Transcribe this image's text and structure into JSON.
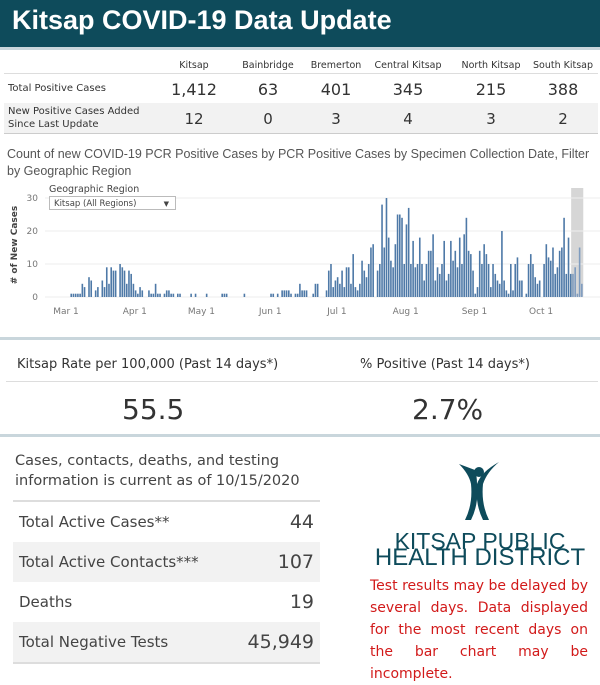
{
  "header": {
    "title": "Kitsap COVID-19 Data Update"
  },
  "summary": {
    "columns": [
      "Kitsap",
      "Bainbridge",
      "Bremerton",
      "Central Kitsap",
      "North Kitsap",
      "South Kitsap"
    ],
    "rows": [
      {
        "label": "Total Positive Cases",
        "values": [
          "1,412",
          "63",
          "401",
          "345",
          "215",
          "388"
        ]
      },
      {
        "label": "New Positive Cases Added Since Last Update",
        "values": [
          "12",
          "0",
          "3",
          "4",
          "3",
          "2"
        ]
      }
    ]
  },
  "filter": {
    "label": "Geographic Region",
    "value": "Kitsap (All Regions)"
  },
  "chart_data": {
    "type": "bar",
    "title": "Count of new COVID-19 PCR Positive Cases by PCR Positive Cases by Specimen Collection Date, Filter by Geographic Region",
    "xlabel": "",
    "ylabel": "# of New Cases",
    "ylim": [
      0,
      30
    ],
    "yticks": [
      "0",
      "10",
      "20",
      "30"
    ],
    "xticks": [
      "Mar 1",
      "Apr 1",
      "May 1",
      "Jun 1",
      "Jul 1",
      "Aug 1",
      "Sep 1",
      "Oct 1"
    ],
    "start_date": "Mar 1",
    "highlight": "last 5 days (possibly incomplete)",
    "values": [
      0,
      0,
      1,
      1,
      1,
      1,
      1,
      4,
      3,
      0,
      6,
      5,
      0,
      2,
      3,
      0,
      5,
      3,
      9,
      4,
      9,
      8,
      8,
      0,
      10,
      9,
      8,
      4,
      8,
      7,
      4,
      2,
      1,
      3,
      2,
      0,
      0,
      2,
      1,
      1,
      4,
      1,
      1,
      0,
      1,
      2,
      2,
      1,
      1,
      0,
      1,
      1,
      0,
      0,
      0,
      0,
      1,
      0,
      1,
      0,
      0,
      0,
      0,
      1,
      0,
      0,
      0,
      0,
      0,
      0,
      1,
      1,
      1,
      0,
      0,
      0,
      0,
      0,
      0,
      0,
      1,
      0,
      0,
      0,
      0,
      0,
      0,
      0,
      0,
      0,
      0,
      0,
      1,
      1,
      0,
      1,
      0,
      2,
      2,
      2,
      2,
      1,
      0,
      1,
      1,
      4,
      2,
      2,
      2,
      0,
      0,
      1,
      4,
      4,
      0,
      0,
      0,
      2,
      8,
      10,
      3,
      5,
      6,
      4,
      8,
      3,
      9,
      9,
      4,
      13,
      3,
      2,
      4,
      11,
      8,
      6,
      10,
      15,
      16,
      0,
      8,
      10,
      28,
      15,
      30,
      18,
      11,
      9,
      16,
      25,
      25,
      24,
      10,
      22,
      27,
      10,
      17,
      9,
      10,
      18,
      10,
      5,
      10,
      14,
      14,
      19,
      5,
      9,
      7,
      10,
      17,
      5,
      7,
      17,
      11,
      14,
      9,
      18,
      10,
      19,
      24,
      14,
      13,
      8,
      1,
      3,
      14,
      10,
      16,
      13,
      10,
      3,
      10,
      7,
      5,
      4,
      20,
      5,
      2,
      1,
      10,
      2,
      10,
      12,
      5,
      5,
      0,
      1,
      10,
      13,
      10,
      6,
      4,
      5,
      0,
      10,
      16,
      12,
      11,
      15,
      7,
      9,
      14,
      15,
      24,
      7,
      18,
      7,
      7,
      9,
      1,
      15,
      4
    ]
  },
  "kpis": [
    {
      "label": "Kitsap Rate per 100,000 (Past 14 days*)",
      "value": "55.5"
    },
    {
      "label": "% Positive (Past 14 days*)",
      "value": "2.7%"
    }
  ],
  "details": {
    "intro": "Cases, contacts, deaths, and testing information is current as of 10/15/2020",
    "rows": [
      {
        "label": "Total Active Cases**",
        "value": "44"
      },
      {
        "label": "Total Active Contacts***",
        "value": "107"
      },
      {
        "label": "Deaths",
        "value": "19"
      },
      {
        "label": "Total Negative Tests",
        "value": "45,949"
      }
    ]
  },
  "logo": {
    "line1": "KITSAP PUBLIC",
    "line2": "HEALTH DISTRICT"
  },
  "note": "Test results may be delayed by several days. Data displayed for the most recent days on the bar chart may be incomplete.",
  "colors": {
    "header": "#0e4b5b",
    "bar": "#4e79a7",
    "note": "#d21a1a"
  }
}
